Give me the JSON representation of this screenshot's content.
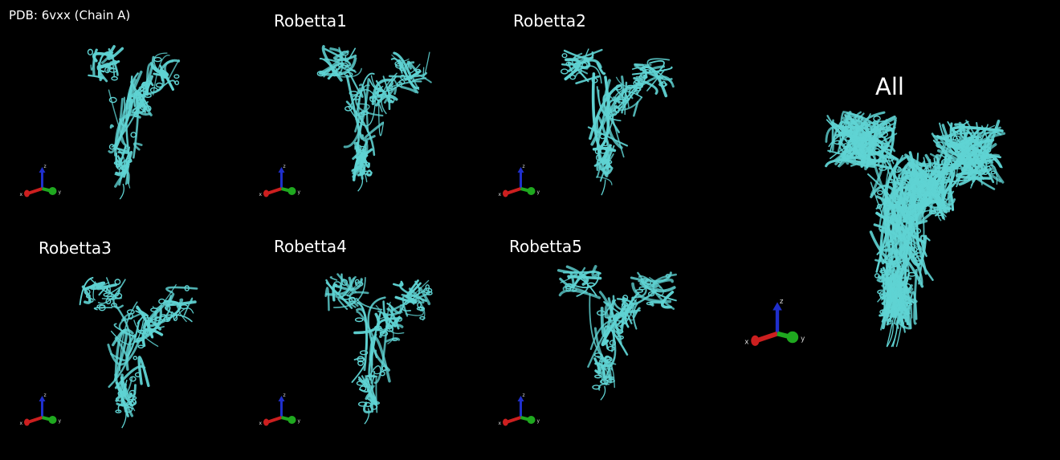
{
  "panels": [
    {
      "id": "ref",
      "label": "PDB: 6vxx (Chain A)"
    },
    {
      "id": "r1",
      "label": "Robetta1"
    },
    {
      "id": "r2",
      "label": "Robetta2"
    },
    {
      "id": "r3",
      "label": "Robetta3"
    },
    {
      "id": "r4",
      "label": "Robetta4"
    },
    {
      "id": "r5",
      "label": "Robetta5"
    },
    {
      "id": "all",
      "label": "All"
    }
  ],
  "axis_labels": {
    "x": "x",
    "y": "y",
    "z": "z"
  },
  "colors": {
    "background": "#000000",
    "protein": "#5fd3d3",
    "axis_x": "#cc1f1f",
    "axis_y": "#1fa81f",
    "axis_z": "#1f2fcc"
  },
  "icons": {
    "axes": "xyz-axes-icon",
    "structure": "protein-ribbon-structure"
  }
}
